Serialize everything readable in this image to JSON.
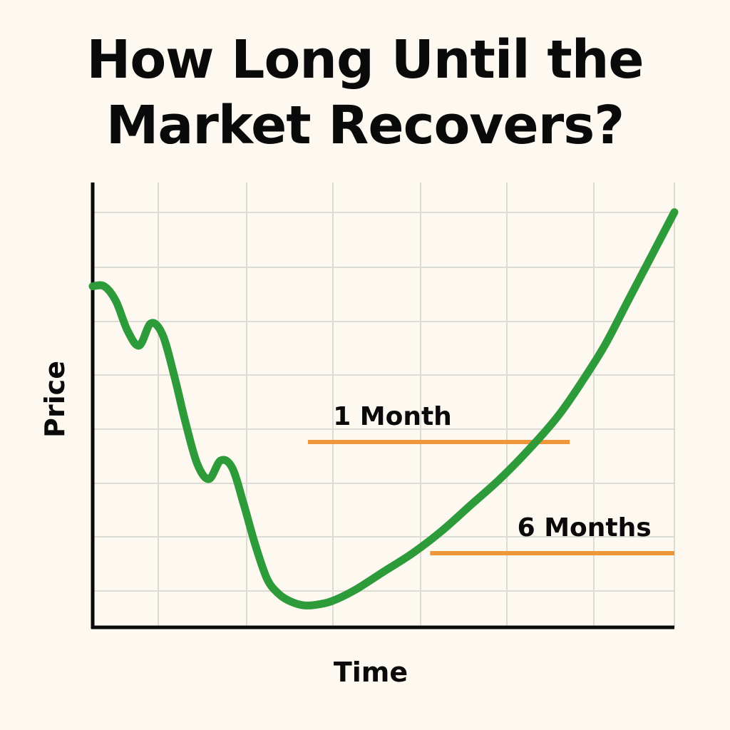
{
  "title_lines": [
    "How Long Until the",
    "Market Recovers?"
  ],
  "colors": {
    "background": "#fdf9f1",
    "grid": "#dcdcd6",
    "axis": "#0a0a0a",
    "line": "#2e9b3a",
    "reference": "#f0963a",
    "text": "#0a0a0a"
  },
  "chart_data": {
    "type": "line",
    "title": "How Long Until the Market Recovers?",
    "xlabel": "Time",
    "ylabel": "Price",
    "xlim": [
      0,
      100
    ],
    "ylim": [
      0,
      100
    ],
    "grid": true,
    "ticks_labeled": false,
    "series": [
      {
        "x": [
          0,
          2,
          4,
          6,
          8,
          10,
          12,
          14,
          16,
          18,
          20,
          22,
          24,
          26,
          28,
          30,
          32,
          34,
          36,
          38,
          41,
          45,
          50,
          55,
          60,
          65,
          70,
          75,
          80,
          84,
          88,
          92,
          96,
          100
        ],
        "y": [
          92,
          92,
          88,
          80,
          76,
          82,
          79,
          68,
          55,
          44,
          40,
          45,
          43,
          33,
          22,
          13,
          9,
          7,
          6,
          6,
          7,
          10,
          15,
          20,
          26,
          33,
          40,
          48,
          57,
          66,
          76,
          88,
          100,
          112
        ]
      }
    ],
    "reference_lines": [
      {
        "label": "1 Month",
        "y": 50,
        "x_start": 37,
        "x_end": 82
      },
      {
        "label": "6 Months",
        "y": 20,
        "x_start": 58,
        "x_end": 100
      }
    ]
  }
}
